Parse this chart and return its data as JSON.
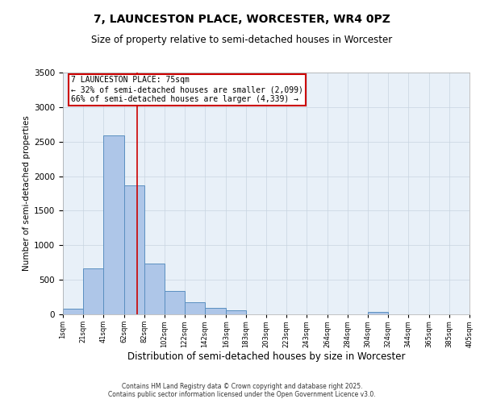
{
  "title": "7, LAUNCESTON PLACE, WORCESTER, WR4 0PZ",
  "subtitle": "Size of property relative to semi-detached houses in Worcester",
  "xlabel": "Distribution of semi-detached houses by size in Worcester",
  "ylabel": "Number of semi-detached properties",
  "property_label": "7 LAUNCESTON PLACE: 75sqm",
  "pct_smaller": 32,
  "count_smaller": 2099,
  "pct_larger": 66,
  "count_larger": 4339,
  "bin_edges": [
    1,
    21,
    41,
    62,
    82,
    102,
    122,
    142,
    163,
    183,
    203,
    223,
    243,
    264,
    284,
    304,
    324,
    344,
    365,
    385,
    405
  ],
  "bin_labels": [
    "1sqm",
    "21sqm",
    "41sqm",
    "62sqm",
    "82sqm",
    "102sqm",
    "122sqm",
    "142sqm",
    "163sqm",
    "183sqm",
    "203sqm",
    "223sqm",
    "243sqm",
    "264sqm",
    "284sqm",
    "304sqm",
    "324sqm",
    "344sqm",
    "365sqm",
    "385sqm",
    "405sqm"
  ],
  "bar_heights": [
    80,
    670,
    2590,
    1870,
    730,
    340,
    170,
    90,
    60,
    0,
    0,
    0,
    0,
    0,
    0,
    30,
    0,
    0,
    0,
    0
  ],
  "bar_color": "#aec6e8",
  "bar_edge_color": "#5a8fc0",
  "vline_x": 75,
  "vline_color": "#cc0000",
  "annotation_box_color": "#cc0000",
  "ylim": [
    0,
    3500
  ],
  "yticks": [
    0,
    500,
    1000,
    1500,
    2000,
    2500,
    3000,
    3500
  ],
  "grid_color": "#c8d4e0",
  "bg_color": "#e8f0f8",
  "footer": "Contains HM Land Registry data © Crown copyright and database right 2025.\nContains public sector information licensed under the Open Government Licence v3.0."
}
